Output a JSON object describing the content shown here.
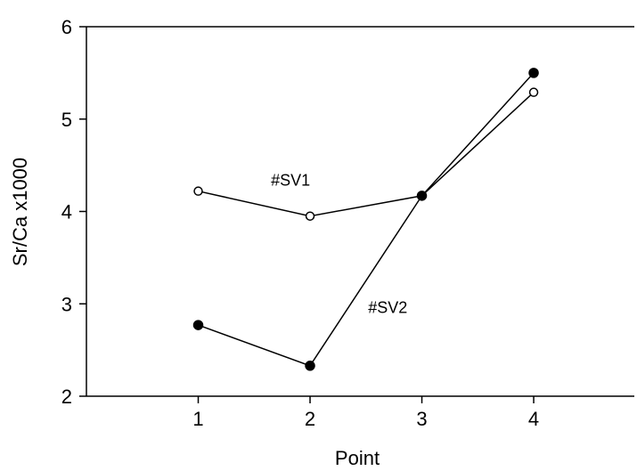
{
  "chart_data": {
    "type": "line",
    "xlabel": "Point",
    "ylabel": "Sr/Ca x1000",
    "xlim": [
      0,
      4.9
    ],
    "ylim": [
      2,
      6
    ],
    "x_ticks": [
      1,
      2,
      3,
      4
    ],
    "y_ticks": [
      2,
      3,
      4,
      5,
      6
    ],
    "grid": false,
    "series": [
      {
        "name": "#SV1",
        "marker": "open-circle",
        "x": [
          1,
          2,
          3,
          4
        ],
        "values": [
          4.22,
          3.95,
          4.17,
          5.29
        ]
      },
      {
        "name": "#SV2",
        "marker": "filled-circle",
        "x": [
          1,
          2,
          3,
          4
        ],
        "values": [
          2.77,
          2.33,
          4.17,
          5.5
        ]
      }
    ],
    "annotations": [
      {
        "text": "#SV1",
        "x": 1.65,
        "y": 4.28
      },
      {
        "text": "#SV2",
        "x": 2.52,
        "y": 2.9
      }
    ],
    "colors": {
      "line": "#000000",
      "axis": "#000000"
    }
  }
}
